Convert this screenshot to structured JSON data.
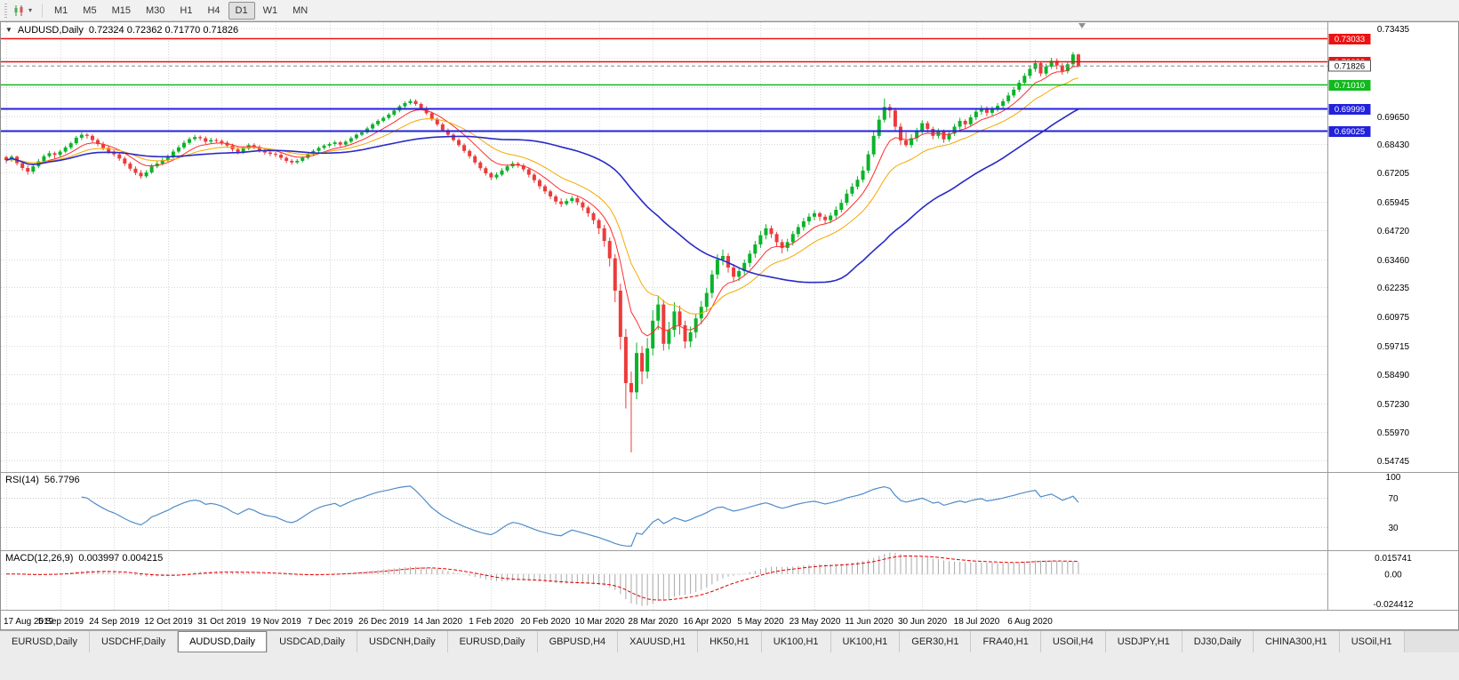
{
  "toolbar": {
    "timeframes": [
      "M1",
      "M5",
      "M15",
      "M30",
      "H1",
      "H4",
      "D1",
      "W1",
      "MN"
    ],
    "active_timeframe": "D1"
  },
  "chart": {
    "title": {
      "collapse_glyph": "▼",
      "symbol": "AUDUSD,Daily",
      "ohlc": "0.72324 0.72362 0.71770 0.71826"
    }
  },
  "chart_data": {
    "type": "candlestick",
    "symbol": "AUDUSD",
    "timeframe": "Daily",
    "last_ohlc": {
      "open": "0.72324",
      "high": "0.72362",
      "low": "0.71770",
      "close": "0.71826"
    },
    "view_range": {
      "min": 0.5425,
      "max": 0.7372
    },
    "x_labels": [
      "17 Aug 2019",
      "5 Sep 2019",
      "24 Sep 2019",
      "12 Oct 2019",
      "31 Oct 2019",
      "19 Nov 2019",
      "7 Dec 2019",
      "26 Dec 2019",
      "14 Jan 2020",
      "1 Feb 2020",
      "20 Feb 2020",
      "10 Mar 2020",
      "28 Mar 2020",
      "16 Apr 2020",
      "5 May 2020",
      "23 May 2020",
      "11 Jun 2020",
      "30 Jun 2020",
      "18 Jul 2020",
      "6 Aug 2020"
    ],
    "y_ticks": [
      "0.73435",
      "0.69650",
      "0.68430",
      "0.67205",
      "0.65945",
      "0.64720",
      "0.63460",
      "0.62235",
      "0.60975",
      "0.59715",
      "0.58490",
      "0.57230",
      "0.55970",
      "0.54745"
    ],
    "y_grid_extra": [
      0.72172,
      0.7091
    ],
    "style": {
      "up_color": "#0bb32a",
      "down_color": "#ec3b3b",
      "grid_color": "#d7d7d7",
      "separator_color": "#9c9c9c",
      "current_price_color": "#888888"
    },
    "horizontal_lines": [
      {
        "price": 0.73033,
        "label": "0.73033",
        "color": "#ee1111",
        "width": 1.4
      },
      {
        "price": 0.72022,
        "label": "0.72022",
        "color": "#ee1111",
        "width": 1.4
      },
      {
        "price": 0.7101,
        "label": "0.71010",
        "color": "#10b91c",
        "width": 1.6
      },
      {
        "price": 0.69999,
        "label": "0.69999",
        "color": "#2121dd",
        "width": 2
      },
      {
        "price": 0.69025,
        "label": "0.69025",
        "color": "#2121dd",
        "width": 2
      }
    ],
    "current_price": {
      "value": 0.71826,
      "label": "0.71826"
    },
    "overlays": [
      {
        "name": "ma-fast",
        "type": "ema",
        "period": 8,
        "color": "#ff2d2d",
        "width": 1
      },
      {
        "name": "ma-mid",
        "type": "ema",
        "period": 17,
        "color": "#f5a800",
        "width": 1
      },
      {
        "name": "ma-slow",
        "type": "sma",
        "period": 42,
        "color": "#2929c8",
        "width": 1.6
      }
    ],
    "indicators": {
      "rsi": {
        "label": "RSI(14)",
        "value": "56.7796",
        "period": 14,
        "series_color": "#4f8cc9",
        "levels": [
          {
            "value": 100,
            "label": "100",
            "line": false
          },
          {
            "value": 70,
            "label": "70",
            "line": true
          },
          {
            "value": 30,
            "label": "30",
            "line": true
          }
        ]
      },
      "macd": {
        "label": "MACD(12,26,9)",
        "values": "0.003997 0.004215",
        "fast": 12,
        "slow": 26,
        "signal": 9,
        "bar_color": "#a8a8a8",
        "signal_color": "#e60000",
        "scale_labels": [
          "0.015741",
          "0.00",
          "-0.024412"
        ]
      }
    },
    "candles": [
      [
        0.6788,
        0.6795,
        0.6762,
        0.6775
      ],
      [
        0.6775,
        0.6798,
        0.6768,
        0.679
      ],
      [
        0.679,
        0.6795,
        0.6752,
        0.6762
      ],
      [
        0.6762,
        0.6772,
        0.673,
        0.6741
      ],
      [
        0.6741,
        0.6752,
        0.6712,
        0.6725
      ],
      [
        0.6725,
        0.6758,
        0.6715,
        0.6748
      ],
      [
        0.6748,
        0.678,
        0.674,
        0.677
      ],
      [
        0.677,
        0.68,
        0.6762,
        0.6792
      ],
      [
        0.6792,
        0.6815,
        0.6785,
        0.6805
      ],
      [
        0.6805,
        0.6812,
        0.6782,
        0.6798
      ],
      [
        0.6798,
        0.682,
        0.679,
        0.6812
      ],
      [
        0.6812,
        0.6838,
        0.6805,
        0.683
      ],
      [
        0.683,
        0.6855,
        0.6822,
        0.6848
      ],
      [
        0.6848,
        0.688,
        0.684,
        0.6872
      ],
      [
        0.6872,
        0.6895,
        0.6862,
        0.6885
      ],
      [
        0.6885,
        0.6892,
        0.6868,
        0.688
      ],
      [
        0.688,
        0.6888,
        0.6852,
        0.6862
      ],
      [
        0.6862,
        0.687,
        0.6835,
        0.6845
      ],
      [
        0.6845,
        0.6855,
        0.6818,
        0.6828
      ],
      [
        0.6828,
        0.6838,
        0.6802,
        0.6812
      ],
      [
        0.6812,
        0.6822,
        0.679,
        0.68
      ],
      [
        0.68,
        0.681,
        0.6772,
        0.6782
      ],
      [
        0.6782,
        0.679,
        0.675,
        0.676
      ],
      [
        0.676,
        0.6768,
        0.6728,
        0.6738
      ],
      [
        0.6738,
        0.6748,
        0.671,
        0.672
      ],
      [
        0.672,
        0.6732,
        0.6695,
        0.6705
      ],
      [
        0.6705,
        0.6732,
        0.6698,
        0.6722
      ],
      [
        0.6722,
        0.6758,
        0.6715,
        0.6748
      ],
      [
        0.6748,
        0.6772,
        0.674,
        0.676
      ],
      [
        0.676,
        0.6785,
        0.6752,
        0.6775
      ],
      [
        0.6775,
        0.68,
        0.6768,
        0.679
      ],
      [
        0.679,
        0.6822,
        0.6782,
        0.6812
      ],
      [
        0.6812,
        0.684,
        0.6805,
        0.683
      ],
      [
        0.683,
        0.686,
        0.6822,
        0.685
      ],
      [
        0.685,
        0.6875,
        0.6842,
        0.6866
      ],
      [
        0.6866,
        0.6885,
        0.6858,
        0.6875
      ],
      [
        0.6875,
        0.6882,
        0.686,
        0.687
      ],
      [
        0.687,
        0.6878,
        0.6845,
        0.6855
      ],
      [
        0.6855,
        0.6872,
        0.6848,
        0.6862
      ],
      [
        0.6862,
        0.687,
        0.6848,
        0.6858
      ],
      [
        0.6858,
        0.6866,
        0.684,
        0.685
      ],
      [
        0.685,
        0.6858,
        0.6828,
        0.6838
      ],
      [
        0.6838,
        0.6846,
        0.6812,
        0.6822
      ],
      [
        0.6822,
        0.6832,
        0.68,
        0.681
      ],
      [
        0.681,
        0.6832,
        0.6802,
        0.6825
      ],
      [
        0.6825,
        0.6848,
        0.6818,
        0.684
      ],
      [
        0.684,
        0.6848,
        0.6822,
        0.6832
      ],
      [
        0.6832,
        0.684,
        0.6808,
        0.6818
      ],
      [
        0.6818,
        0.6826,
        0.6798,
        0.6808
      ],
      [
        0.6808,
        0.6815,
        0.6792,
        0.6802
      ],
      [
        0.6802,
        0.681,
        0.6788,
        0.6798
      ],
      [
        0.6798,
        0.6805,
        0.6775,
        0.6785
      ],
      [
        0.6785,
        0.6792,
        0.6762,
        0.6772
      ],
      [
        0.6772,
        0.678,
        0.6755,
        0.6765
      ],
      [
        0.6765,
        0.678,
        0.6758,
        0.6772
      ],
      [
        0.6772,
        0.6792,
        0.6765,
        0.6785
      ],
      [
        0.6785,
        0.6808,
        0.6778,
        0.68
      ],
      [
        0.68,
        0.6822,
        0.6792,
        0.6815
      ],
      [
        0.6815,
        0.6835,
        0.6808,
        0.6828
      ],
      [
        0.6828,
        0.6845,
        0.682,
        0.6838
      ],
      [
        0.6838,
        0.6852,
        0.683,
        0.6845
      ],
      [
        0.6845,
        0.686,
        0.6835,
        0.6852
      ],
      [
        0.6852,
        0.6858,
        0.6832,
        0.6842
      ],
      [
        0.6842,
        0.6862,
        0.6835,
        0.6855
      ],
      [
        0.6855,
        0.6878,
        0.6848,
        0.687
      ],
      [
        0.687,
        0.6892,
        0.6862,
        0.6885
      ],
      [
        0.6885,
        0.6902,
        0.6878,
        0.6895
      ],
      [
        0.6895,
        0.692,
        0.6888,
        0.6912
      ],
      [
        0.6912,
        0.6938,
        0.6905,
        0.693
      ],
      [
        0.693,
        0.6952,
        0.6922,
        0.6945
      ],
      [
        0.6945,
        0.6965,
        0.6938,
        0.6958
      ],
      [
        0.6958,
        0.698,
        0.695,
        0.6972
      ],
      [
        0.6972,
        0.6998,
        0.6965,
        0.699
      ],
      [
        0.699,
        0.7015,
        0.6982,
        0.7008
      ],
      [
        0.7008,
        0.703,
        0.7,
        0.7022
      ],
      [
        0.7022,
        0.704,
        0.7015,
        0.7031
      ],
      [
        0.7031,
        0.7038,
        0.701,
        0.7018
      ],
      [
        0.7018,
        0.7025,
        0.6992,
        0.7
      ],
      [
        0.7,
        0.7008,
        0.697,
        0.6978
      ],
      [
        0.6978,
        0.6985,
        0.6945,
        0.6952
      ],
      [
        0.6952,
        0.696,
        0.6922,
        0.693
      ],
      [
        0.693,
        0.6938,
        0.6898,
        0.6905
      ],
      [
        0.6905,
        0.6912,
        0.6876,
        0.6885
      ],
      [
        0.6885,
        0.6892,
        0.6855,
        0.6862
      ],
      [
        0.6862,
        0.687,
        0.6832,
        0.684
      ],
      [
        0.684,
        0.6848,
        0.6806,
        0.6815
      ],
      [
        0.6815,
        0.6822,
        0.6782,
        0.6792
      ],
      [
        0.6792,
        0.68,
        0.6756,
        0.6765
      ],
      [
        0.6765,
        0.6772,
        0.673,
        0.674
      ],
      [
        0.674,
        0.6748,
        0.6708,
        0.6718
      ],
      [
        0.6718,
        0.6725,
        0.6688,
        0.67
      ],
      [
        0.67,
        0.6722,
        0.6692,
        0.6712
      ],
      [
        0.6712,
        0.674,
        0.6705,
        0.673
      ],
      [
        0.673,
        0.6756,
        0.6722,
        0.6748
      ],
      [
        0.6748,
        0.677,
        0.674,
        0.676
      ],
      [
        0.676,
        0.6768,
        0.6742,
        0.6752
      ],
      [
        0.6752,
        0.676,
        0.6725,
        0.6735
      ],
      [
        0.6735,
        0.6742,
        0.67,
        0.6712
      ],
      [
        0.6712,
        0.672,
        0.6676,
        0.6688
      ],
      [
        0.6688,
        0.6695,
        0.665,
        0.6662
      ],
      [
        0.6662,
        0.667,
        0.6628,
        0.664
      ],
      [
        0.664,
        0.6648,
        0.6606,
        0.6618
      ],
      [
        0.6618,
        0.6626,
        0.6584,
        0.6596
      ],
      [
        0.6596,
        0.661,
        0.6572,
        0.6585
      ],
      [
        0.6585,
        0.6608,
        0.6578,
        0.6598
      ],
      [
        0.6598,
        0.662,
        0.6588,
        0.661
      ],
      [
        0.661,
        0.6618,
        0.658,
        0.6592
      ],
      [
        0.6592,
        0.66,
        0.6556,
        0.657
      ],
      [
        0.657,
        0.6578,
        0.653,
        0.6545
      ],
      [
        0.6545,
        0.6552,
        0.6498,
        0.6515
      ],
      [
        0.6515,
        0.6522,
        0.6455,
        0.648
      ],
      [
        0.648,
        0.6495,
        0.64,
        0.6425
      ],
      [
        0.6425,
        0.644,
        0.6315,
        0.635
      ],
      [
        0.635,
        0.6368,
        0.616,
        0.621
      ],
      [
        0.621,
        0.624,
        0.5955,
        0.601
      ],
      [
        0.601,
        0.6045,
        0.57,
        0.581
      ],
      [
        0.581,
        0.586,
        0.551,
        0.577
      ],
      [
        0.577,
        0.5985,
        0.574,
        0.594
      ],
      [
        0.594,
        0.597,
        0.5805,
        0.586
      ],
      [
        0.586,
        0.6005,
        0.583,
        0.596
      ],
      [
        0.596,
        0.6125,
        0.593,
        0.608
      ],
      [
        0.608,
        0.6185,
        0.604,
        0.615
      ],
      [
        0.615,
        0.617,
        0.595,
        0.598
      ],
      [
        0.598,
        0.6075,
        0.5955,
        0.604
      ],
      [
        0.604,
        0.616,
        0.601,
        0.612
      ],
      [
        0.612,
        0.6145,
        0.602,
        0.606
      ],
      [
        0.606,
        0.608,
        0.596,
        0.599
      ],
      [
        0.599,
        0.6055,
        0.5965,
        0.603
      ],
      [
        0.603,
        0.611,
        0.6005,
        0.609
      ],
      [
        0.609,
        0.6165,
        0.6065,
        0.614
      ],
      [
        0.614,
        0.6222,
        0.6118,
        0.62
      ],
      [
        0.62,
        0.6298,
        0.6178,
        0.628
      ],
      [
        0.628,
        0.6368,
        0.626,
        0.6345
      ],
      [
        0.6345,
        0.6388,
        0.632,
        0.636
      ],
      [
        0.636,
        0.6372,
        0.6288,
        0.631
      ],
      [
        0.631,
        0.6325,
        0.6248,
        0.627
      ],
      [
        0.627,
        0.631,
        0.6252,
        0.6295
      ],
      [
        0.6295,
        0.6345,
        0.6278,
        0.633
      ],
      [
        0.633,
        0.6385,
        0.6312,
        0.637
      ],
      [
        0.637,
        0.6425,
        0.6352,
        0.641
      ],
      [
        0.641,
        0.6468,
        0.6395,
        0.645
      ],
      [
        0.645,
        0.6498,
        0.6432,
        0.648
      ],
      [
        0.648,
        0.6492,
        0.6438,
        0.6455
      ],
      [
        0.6455,
        0.6465,
        0.6402,
        0.642
      ],
      [
        0.642,
        0.6432,
        0.6372,
        0.6395
      ],
      [
        0.6395,
        0.6435,
        0.638,
        0.642
      ],
      [
        0.642,
        0.6468,
        0.6405,
        0.6455
      ],
      [
        0.6455,
        0.6498,
        0.644,
        0.6485
      ],
      [
        0.6485,
        0.6525,
        0.647,
        0.651
      ],
      [
        0.651,
        0.6545,
        0.6495,
        0.653
      ],
      [
        0.653,
        0.6558,
        0.6515,
        0.6545
      ],
      [
        0.6545,
        0.6552,
        0.6512,
        0.653
      ],
      [
        0.653,
        0.654,
        0.6498,
        0.6515
      ],
      [
        0.6515,
        0.6548,
        0.6502,
        0.6535
      ],
      [
        0.6535,
        0.6575,
        0.6522,
        0.656
      ],
      [
        0.656,
        0.6605,
        0.6548,
        0.659
      ],
      [
        0.659,
        0.6648,
        0.6578,
        0.663
      ],
      [
        0.663,
        0.6675,
        0.6618,
        0.666
      ],
      [
        0.666,
        0.6705,
        0.6648,
        0.669
      ],
      [
        0.669,
        0.6748,
        0.6678,
        0.673
      ],
      [
        0.673,
        0.6815,
        0.6718,
        0.68
      ],
      [
        0.68,
        0.6898,
        0.6788,
        0.688
      ],
      [
        0.688,
        0.6968,
        0.6868,
        0.695
      ],
      [
        0.695,
        0.7042,
        0.6938,
        0.7005
      ],
      [
        0.7005,
        0.7018,
        0.6958,
        0.699
      ],
      [
        0.699,
        0.7002,
        0.6902,
        0.692
      ],
      [
        0.692,
        0.6935,
        0.684,
        0.686
      ],
      [
        0.686,
        0.6895,
        0.6832,
        0.684
      ],
      [
        0.684,
        0.6888,
        0.6828,
        0.687
      ],
      [
        0.687,
        0.6915,
        0.6855,
        0.69
      ],
      [
        0.69,
        0.6948,
        0.6888,
        0.6935
      ],
      [
        0.6935,
        0.6945,
        0.6895,
        0.691
      ],
      [
        0.691,
        0.692,
        0.6865,
        0.688
      ],
      [
        0.688,
        0.6912,
        0.6868,
        0.69
      ],
      [
        0.69,
        0.6908,
        0.685,
        0.6865
      ],
      [
        0.6865,
        0.6902,
        0.6855,
        0.689
      ],
      [
        0.689,
        0.6932,
        0.688,
        0.692
      ],
      [
        0.692,
        0.6958,
        0.6908,
        0.6945
      ],
      [
        0.6945,
        0.6952,
        0.6912,
        0.693
      ],
      [
        0.693,
        0.6972,
        0.692,
        0.696
      ],
      [
        0.696,
        0.6998,
        0.6948,
        0.6985
      ],
      [
        0.6985,
        0.7012,
        0.6972,
        0.7
      ],
      [
        0.7,
        0.7008,
        0.6965,
        0.698
      ],
      [
        0.698,
        0.7008,
        0.6968,
        0.6995
      ],
      [
        0.6995,
        0.7022,
        0.6985,
        0.701
      ],
      [
        0.701,
        0.7042,
        0.7,
        0.703
      ],
      [
        0.703,
        0.7068,
        0.702,
        0.7055
      ],
      [
        0.7055,
        0.7092,
        0.7045,
        0.708
      ],
      [
        0.708,
        0.7122,
        0.707,
        0.711
      ],
      [
        0.711,
        0.7152,
        0.7098,
        0.714
      ],
      [
        0.714,
        0.7182,
        0.7128,
        0.717
      ],
      [
        0.717,
        0.7208,
        0.7158,
        0.7195
      ],
      [
        0.7195,
        0.7202,
        0.7138,
        0.715
      ],
      [
        0.715,
        0.7192,
        0.714,
        0.718
      ],
      [
        0.718,
        0.7218,
        0.717,
        0.7205
      ],
      [
        0.7205,
        0.7215,
        0.7168,
        0.7185
      ],
      [
        0.7185,
        0.7195,
        0.7145,
        0.716
      ],
      [
        0.716,
        0.7202,
        0.715,
        0.719
      ],
      [
        0.719,
        0.7243,
        0.7182,
        0.72324
      ],
      [
        0.72324,
        0.72362,
        0.7177,
        0.71826
      ]
    ]
  },
  "tabs": {
    "active_index": 2,
    "labels": [
      "EURUSD,Daily",
      "USDCHF,Daily",
      "AUDUSD,Daily",
      "USDCAD,Daily",
      "USDCNH,Daily",
      "EURUSD,Daily",
      "GBPUSD,H4",
      "XAUUSD,H1",
      "HK50,H1",
      "UK100,H1",
      "UK100,H1",
      "GER30,H1",
      "FRA40,H1",
      "USOil,H4",
      "USDJPY,H1",
      "DJ30,Daily",
      "CHINA300,H1",
      "USOil,H1"
    ]
  }
}
